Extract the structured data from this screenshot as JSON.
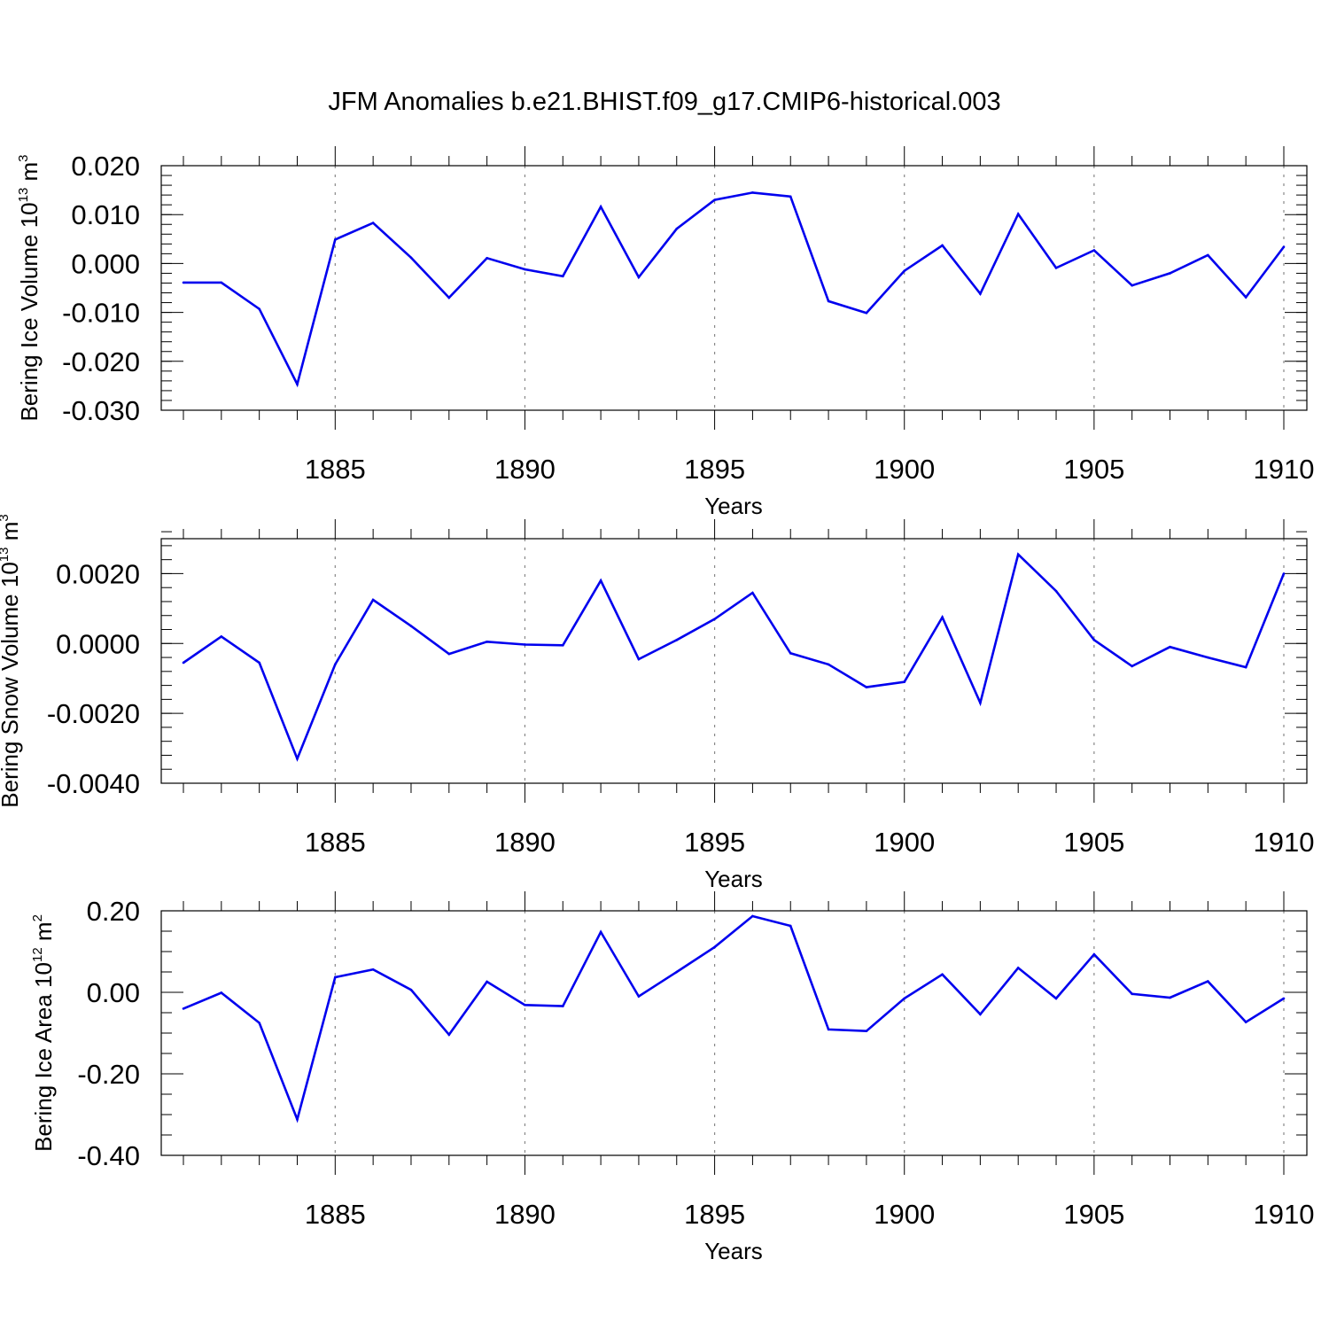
{
  "chart_data": {
    "type": "line",
    "title": "JFM Anomalies b.e21.BHIST.f09_g17.CMIP6-historical.003",
    "line_color": "#0000ee",
    "grid_color": "#888888",
    "x": [
      1881,
      1882,
      1883,
      1884,
      1885,
      1886,
      1887,
      1888,
      1889,
      1890,
      1891,
      1892,
      1893,
      1894,
      1895,
      1896,
      1897,
      1898,
      1899,
      1900,
      1901,
      1902,
      1903,
      1904,
      1905,
      1906,
      1907,
      1908,
      1909,
      1910
    ],
    "xlim": [
      1881,
      1910
    ],
    "xticks": [
      1885,
      1890,
      1895,
      1900,
      1905,
      1910
    ],
    "xtick_labels": [
      "1885",
      "1890",
      "1895",
      "1900",
      "1905",
      "1910"
    ],
    "panels": [
      {
        "name": "ice-volume",
        "xlabel": "Years",
        "ylabel_text": "Bering Ice Volume 10",
        "ylabel_exp1": "13",
        "ylabel_unit": " m",
        "ylabel_exp2": "3",
        "ylim": [
          -0.03,
          0.02
        ],
        "yticks": [
          -0.03,
          -0.02,
          -0.01,
          0.0,
          0.01,
          0.02
        ],
        "ytick_labels": [
          "-0.030",
          "-0.020",
          "-0.010",
          "0.000",
          "0.010",
          "0.020"
        ],
        "yminor_step": 0.002,
        "values": [
          -0.0039,
          -0.0039,
          -0.0093,
          -0.0247,
          0.0049,
          0.0083,
          0.0012,
          -0.007,
          0.0011,
          -0.0012,
          -0.0026,
          0.0116,
          -0.0028,
          0.0071,
          0.013,
          0.0145,
          0.0137,
          -0.0077,
          -0.0101,
          -0.0015,
          0.0037,
          -0.0062,
          0.0101,
          -0.0009,
          0.0027,
          -0.0045,
          -0.002,
          0.0017,
          -0.0069,
          0.0034
        ]
      },
      {
        "name": "snow-volume",
        "xlabel": "Years",
        "ylabel_text": "Bering Snow Volume 10",
        "ylabel_exp1": "13",
        "ylabel_unit": " m",
        "ylabel_exp2": "3",
        "ylim": [
          -0.004,
          0.003
        ],
        "yticks": [
          -0.004,
          -0.002,
          0.0,
          0.002
        ],
        "ytick_labels": [
          "-0.0040",
          "-0.0020",
          "0.0000",
          "0.0020"
        ],
        "yminor_step": 0.0004,
        "values": [
          -0.00055,
          0.0002,
          -0.00055,
          -0.0033,
          -0.0006,
          0.00125,
          0.0005,
          -0.0003,
          5e-05,
          -3e-05,
          -5e-05,
          0.0018,
          -0.00045,
          0.0001,
          0.0007,
          0.00145,
          -0.00028,
          -0.0006,
          -0.00125,
          -0.0011,
          0.00075,
          -0.0017,
          0.00255,
          0.0015,
          0.0001,
          -0.00065,
          -0.0001,
          -0.0004,
          -0.00068,
          0.002
        ]
      },
      {
        "name": "ice-area",
        "xlabel": "Years",
        "ylabel_text": "Bering Ice Area 10",
        "ylabel_exp1": "12",
        "ylabel_unit": " m",
        "ylabel_exp2": "2",
        "ylim": [
          -0.4,
          0.2
        ],
        "yticks": [
          -0.4,
          -0.2,
          0.0,
          0.2
        ],
        "ytick_labels": [
          "-0.40",
          "-0.20",
          "0.00",
          "0.20"
        ],
        "yminor_step": 0.05,
        "values": [
          -0.04,
          -0.001,
          -0.075,
          -0.312,
          0.037,
          0.056,
          0.006,
          -0.104,
          0.026,
          -0.031,
          -0.034,
          0.148,
          -0.01,
          0.05,
          0.111,
          0.187,
          0.163,
          -0.091,
          -0.095,
          -0.015,
          0.044,
          -0.054,
          0.06,
          -0.015,
          0.093,
          -0.004,
          -0.013,
          0.027,
          -0.073,
          -0.015
        ]
      }
    ]
  }
}
